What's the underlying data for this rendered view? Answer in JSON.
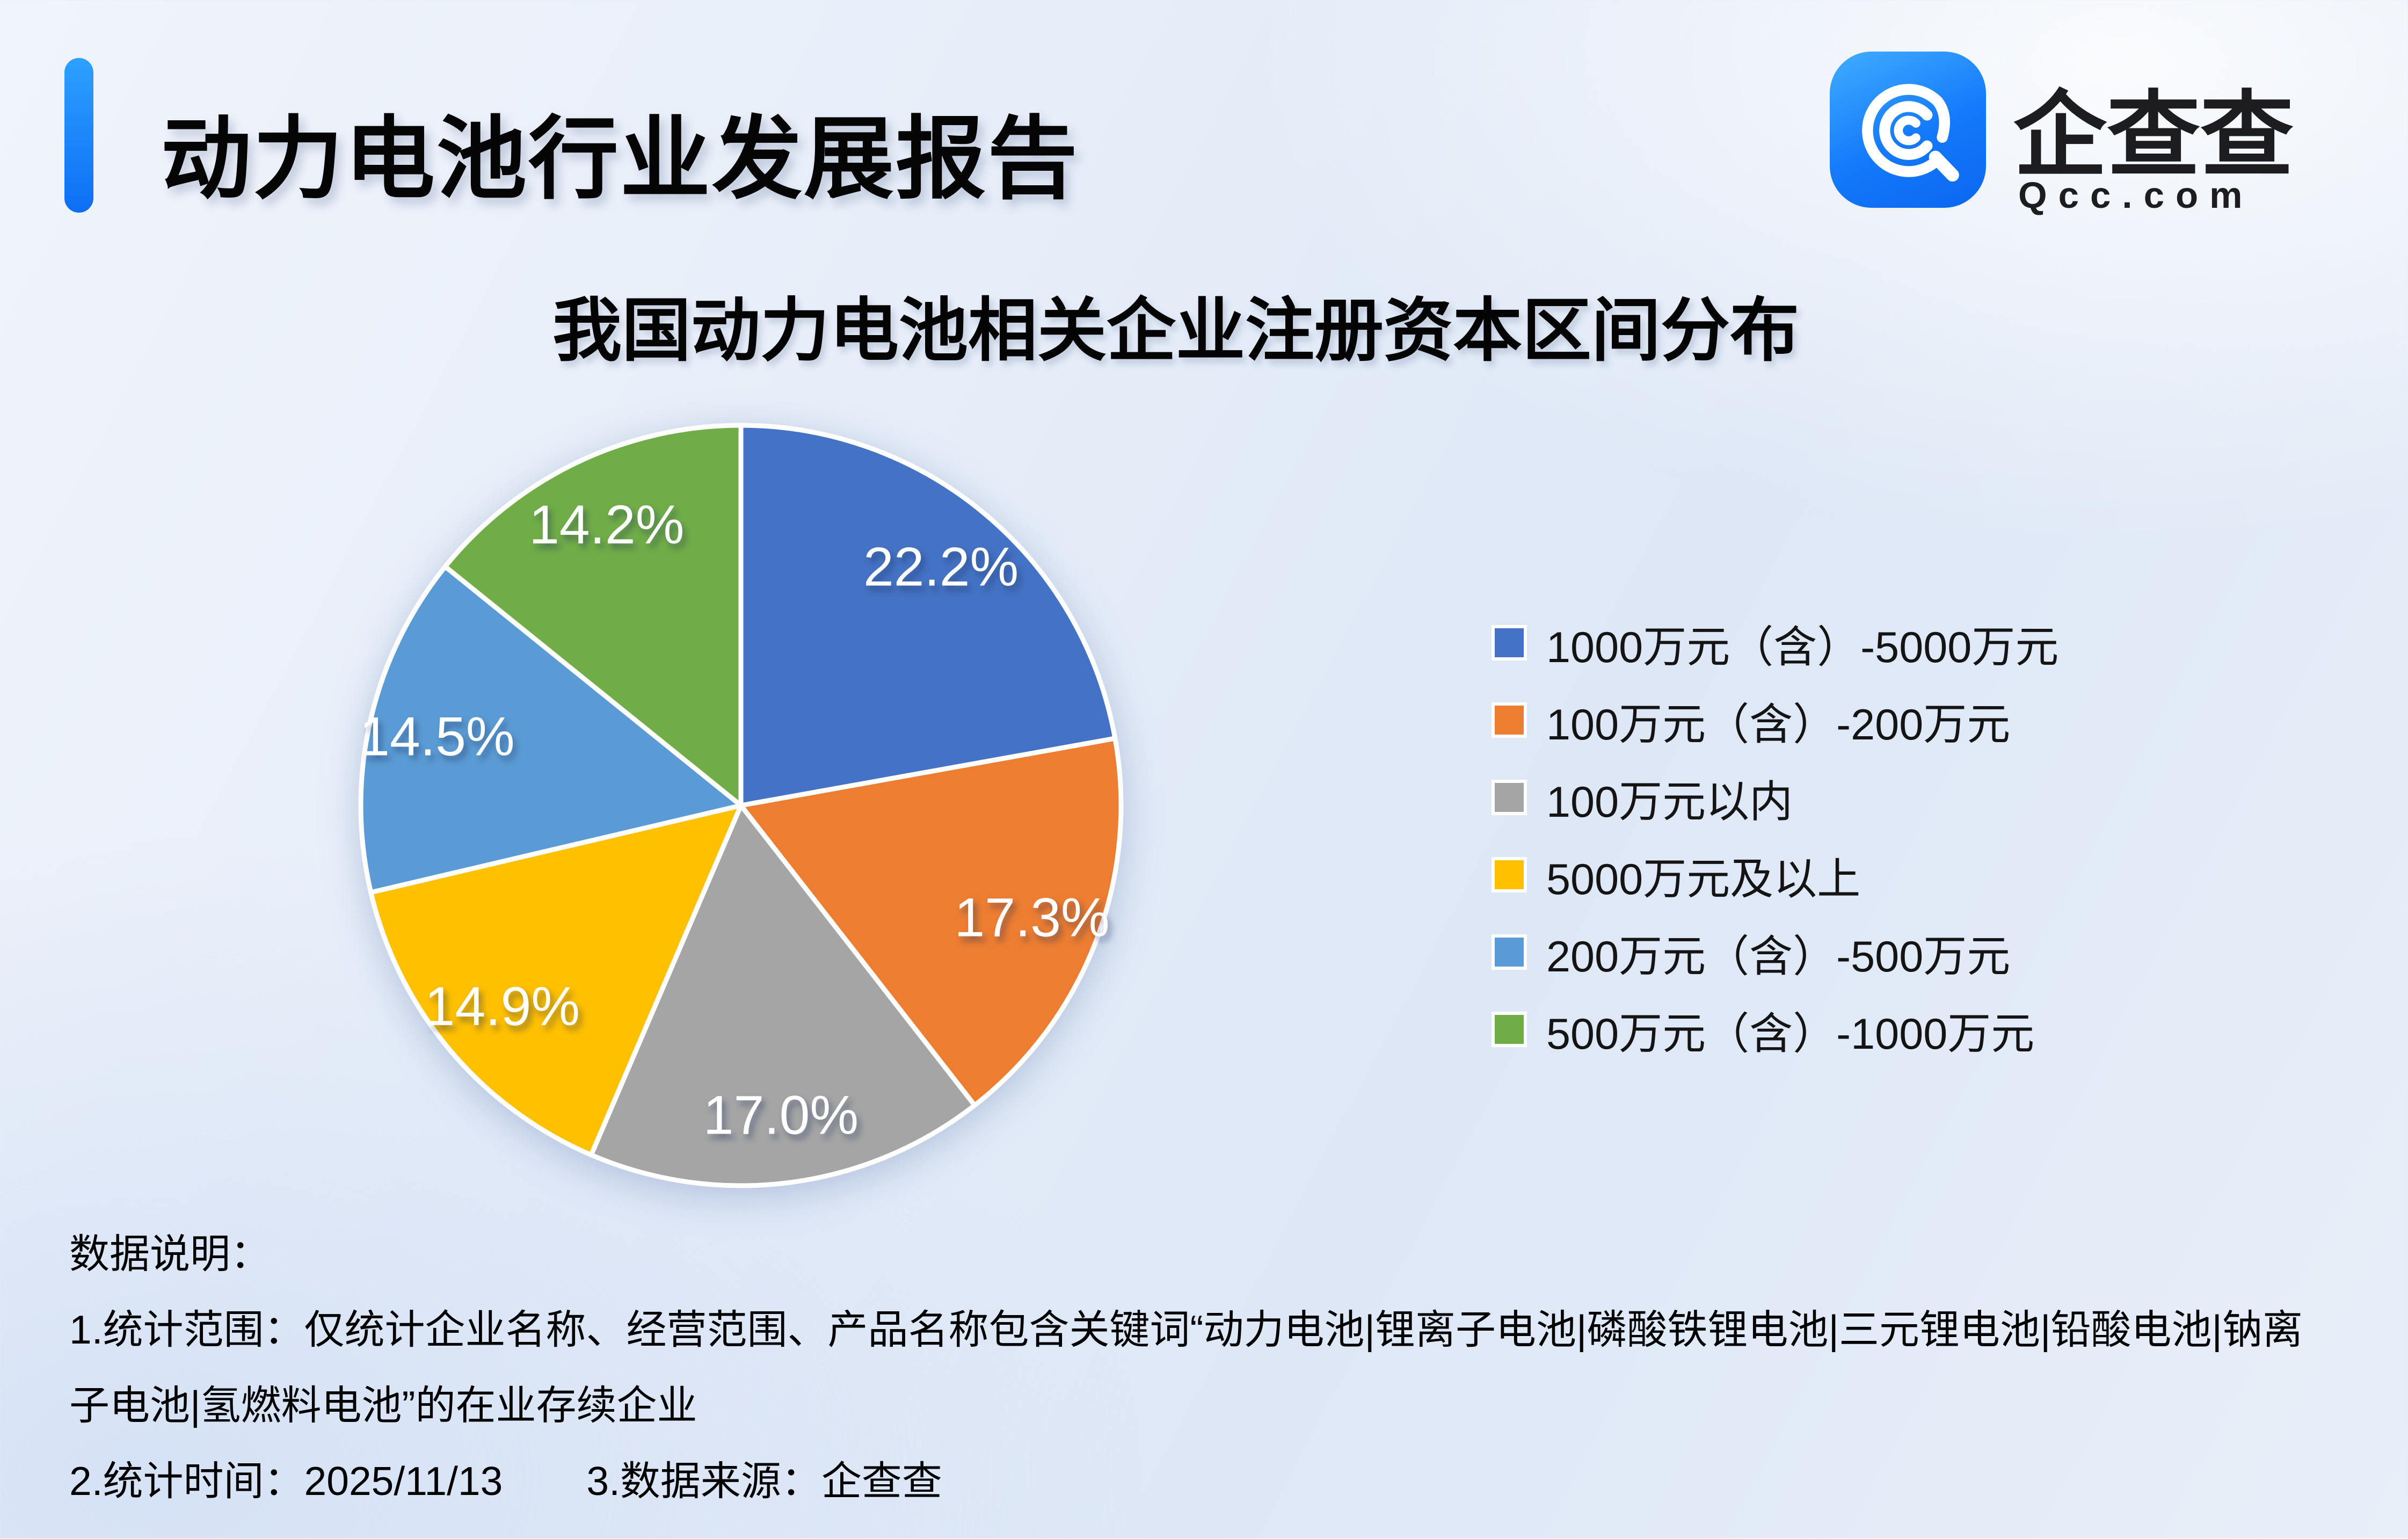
{
  "header": {
    "report_title": "动力电池行业发展报告",
    "accent_color": "#1677FF"
  },
  "brand": {
    "name": "企查查",
    "domain": "Qcc.com",
    "icon": "qcc-search-icon",
    "tile_color": "#1479FB"
  },
  "chart": {
    "title": "我国动力电池相关企业注册资本区间分布"
  },
  "chart_data": {
    "type": "pie",
    "title": "我国动力电池相关企业注册资本区间分布",
    "unit": "percent",
    "rotation": "starts at 12 o'clock, clockwise",
    "legend_position": "right",
    "data_labels": "inside, white percent values",
    "slices": [
      {
        "label": "1000万元（含）-5000万元",
        "value": 22.2,
        "display": "22.2%",
        "color": "#4472C4"
      },
      {
        "label": "100万元（含）-200万元",
        "value": 17.3,
        "display": "17.3%",
        "color": "#ED7D31"
      },
      {
        "label": "100万元以内",
        "value": 17.0,
        "display": "17.0%",
        "color": "#A5A5A5"
      },
      {
        "label": "5000万元及以上",
        "value": 14.9,
        "display": "14.9%",
        "color": "#FFC000"
      },
      {
        "label": "200万元（含）-500万元",
        "value": 14.5,
        "display": "14.5%",
        "color": "#5B9BD5"
      },
      {
        "label": "500万元（含）-1000万元",
        "value": 14.2,
        "display": "14.2%",
        "color": "#70AD47"
      }
    ]
  },
  "footer": {
    "heading": "数据说明：",
    "note_scope": "1.统计范围：仅统计企业名称、经营范围、产品名称包含关键词“动力电池|锂离子电池|磷酸铁锂电池|三元锂电池|铅酸电池|钠离子电池|氢燃料电池”的在业存续企业",
    "note_time": "2.统计时间：2025/11/13",
    "note_source": "3.数据来源：企查查"
  }
}
